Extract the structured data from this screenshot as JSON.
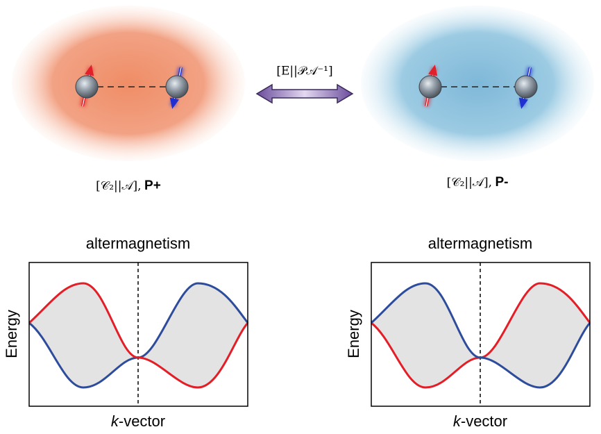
{
  "top": {
    "left_label": {
      "symbol": "[𝒞₂||𝒜],",
      "state": "P+"
    },
    "right_label": {
      "symbol": "[𝒞₂||𝒜],",
      "state": "P-"
    },
    "arrow_label": "[E||𝒫𝒜⁻¹]"
  },
  "panels": [
    {
      "title": "altermagnetism",
      "ylabel": "Energy",
      "xlabel_italic": "k",
      "xlabel_rest": "-vector"
    },
    {
      "title": "altermagnetism",
      "ylabel": "Energy",
      "xlabel_italic": "k",
      "xlabel_rest": "-vector"
    }
  ]
}
